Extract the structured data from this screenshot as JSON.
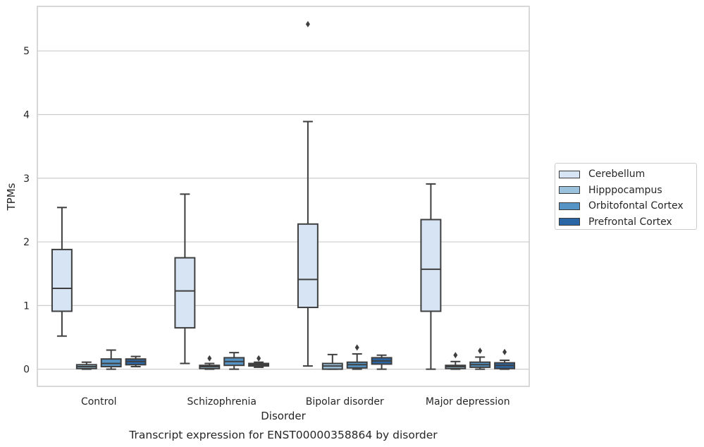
{
  "chart_data": {
    "type": "box",
    "title": "Transcript expression for ENST00000358864 by disorder",
    "xlabel": "Disorder",
    "ylabel": "TPMs",
    "ylim": [
      -0.27,
      5.7
    ],
    "yticks": [
      0,
      1,
      2,
      3,
      4,
      5
    ],
    "grid": "horizontal",
    "legend_position": "right, outside",
    "categories": [
      "Control",
      "Schizophrenia",
      "Bipolar disorder",
      "Major depression"
    ],
    "series": [
      {
        "name": "Cerebellum",
        "color": "#d6e4f3",
        "boxes": [
          {
            "whisker_low": 0.52,
            "q1": 0.91,
            "median": 1.27,
            "q3": 1.88,
            "whisker_high": 2.54,
            "outliers": []
          },
          {
            "whisker_low": 0.09,
            "q1": 0.65,
            "median": 1.23,
            "q3": 1.75,
            "whisker_high": 2.75,
            "outliers": []
          },
          {
            "whisker_low": 0.05,
            "q1": 0.97,
            "median": 1.41,
            "q3": 2.28,
            "whisker_high": 3.89,
            "outliers": [
              5.42
            ]
          },
          {
            "whisker_low": 0.0,
            "q1": 0.91,
            "median": 1.57,
            "q3": 2.35,
            "whisker_high": 2.91,
            "outliers": []
          }
        ]
      },
      {
        "name": "Hipppocampus",
        "color": "#9ac2dd",
        "boxes": [
          {
            "whisker_low": 0.0,
            "q1": 0.01,
            "median": 0.04,
            "q3": 0.07,
            "whisker_high": 0.11,
            "outliers": []
          },
          {
            "whisker_low": 0.0,
            "q1": 0.01,
            "median": 0.04,
            "q3": 0.06,
            "whisker_high": 0.09,
            "outliers": [
              0.17
            ]
          },
          {
            "whisker_low": 0.0,
            "q1": 0.0,
            "median": 0.05,
            "q3": 0.09,
            "whisker_high": 0.23,
            "outliers": []
          },
          {
            "whisker_low": 0.0,
            "q1": 0.01,
            "median": 0.04,
            "q3": 0.06,
            "whisker_high": 0.12,
            "outliers": [
              0.22
            ]
          }
        ]
      },
      {
        "name": "Orbitofontal Cortex",
        "color": "#5594c5",
        "boxes": [
          {
            "whisker_low": 0.0,
            "q1": 0.04,
            "median": 0.09,
            "q3": 0.16,
            "whisker_high": 0.3,
            "outliers": []
          },
          {
            "whisker_low": 0.0,
            "q1": 0.06,
            "median": 0.12,
            "q3": 0.18,
            "whisker_high": 0.26,
            "outliers": []
          },
          {
            "whisker_low": 0.0,
            "q1": 0.02,
            "median": 0.07,
            "q3": 0.11,
            "whisker_high": 0.24,
            "outliers": [
              0.34
            ]
          },
          {
            "whisker_low": 0.0,
            "q1": 0.03,
            "median": 0.07,
            "q3": 0.11,
            "whisker_high": 0.19,
            "outliers": [
              0.29
            ]
          }
        ]
      },
      {
        "name": "Prefrontal Cortex",
        "color": "#2a66a5",
        "boxes": [
          {
            "whisker_low": 0.04,
            "q1": 0.07,
            "median": 0.12,
            "q3": 0.16,
            "whisker_high": 0.2,
            "outliers": []
          },
          {
            "whisker_low": 0.03,
            "q1": 0.05,
            "median": 0.07,
            "q3": 0.09,
            "whisker_high": 0.11,
            "outliers": [
              0.17
            ]
          },
          {
            "whisker_low": 0.0,
            "q1": 0.08,
            "median": 0.13,
            "q3": 0.18,
            "whisker_high": 0.22,
            "outliers": []
          },
          {
            "whisker_low": 0.0,
            "q1": 0.01,
            "median": 0.06,
            "q3": 0.1,
            "whisker_high": 0.14,
            "outliers": [
              0.27
            ]
          }
        ]
      }
    ]
  }
}
